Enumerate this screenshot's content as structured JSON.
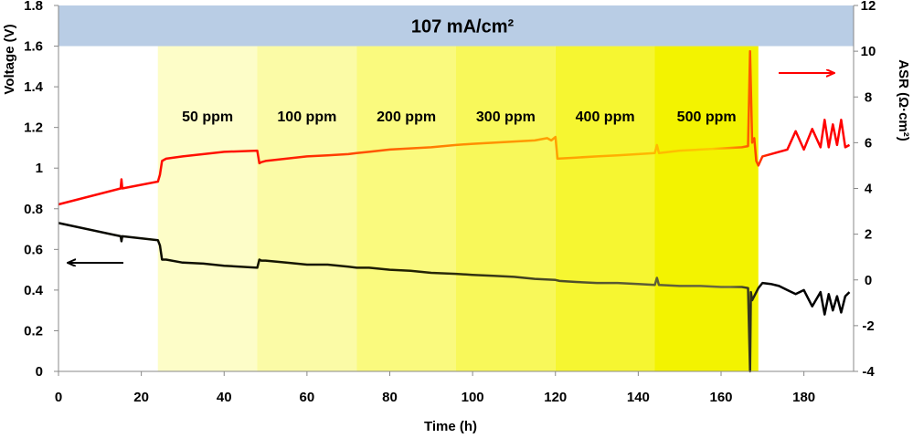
{
  "chart_data": {
    "type": "line",
    "title": "107    mA/cm²",
    "xlabel": "Time (h)",
    "ylabel_left": "Voltage (V)",
    "ylabel_right": "ASR (Ω·cm²)",
    "xlim": [
      0,
      192
    ],
    "ylim_left": [
      0,
      1.8
    ],
    "ylim_right": [
      -4,
      12
    ],
    "x_ticks": [
      0,
      20,
      40,
      60,
      80,
      100,
      120,
      140,
      160,
      180
    ],
    "y_left_ticks": [
      0,
      0.2,
      0.4,
      0.6,
      0.8,
      1,
      1.2,
      1.4,
      1.6,
      1.8
    ],
    "y_left_tick_labels": [
      "0",
      "0.2",
      "0.4",
      "0.6",
      "0.8",
      "1",
      "1.2",
      "1.4",
      "1.6",
      "1.8"
    ],
    "y_right_ticks": [
      -4,
      -2,
      0,
      2,
      4,
      6,
      8,
      10,
      12
    ],
    "zones": [
      {
        "label": "50 ppm",
        "x0": 24,
        "x1": 48,
        "color": "#fdfdc8"
      },
      {
        "label": "100 ppm",
        "x0": 48,
        "x1": 72,
        "color": "#fbfba6"
      },
      {
        "label": "200 ppm",
        "x0": 72,
        "x1": 96,
        "color": "#fafa7e"
      },
      {
        "label": "300 ppm",
        "x0": 96,
        "x1": 120,
        "color": "#f8f85a"
      },
      {
        "label": "400 ppm",
        "x0": 120,
        "x1": 144,
        "color": "#f6f631"
      },
      {
        "label": "500 ppm",
        "x0": 144,
        "x1": 169,
        "color": "#f3f300"
      }
    ],
    "colors": {
      "banner": "#b9cde5",
      "voltage": "#000000",
      "asr": "#ff0000",
      "asr_mid": "#ff9900"
    },
    "series": [
      {
        "name": "Voltage",
        "axis": "left",
        "x": [
          0,
          15,
          15.2,
          15.4,
          24,
          24.5,
          25,
          26,
          30,
          35,
          40,
          48,
          48.5,
          49,
          50,
          55,
          60,
          65,
          70,
          72,
          75,
          80,
          85,
          90,
          96,
          100,
          105,
          110,
          115,
          120,
          121,
          125,
          130,
          135,
          140,
          144,
          144.5,
          145,
          150,
          155,
          160,
          165,
          166.5,
          167,
          167.2,
          167.5,
          168,
          169,
          170,
          172,
          174,
          176,
          178,
          180,
          182,
          184,
          185,
          186,
          187,
          188,
          189,
          190,
          191
        ],
        "values": [
          0.73,
          0.665,
          0.64,
          0.665,
          0.645,
          0.62,
          0.55,
          0.55,
          0.535,
          0.53,
          0.52,
          0.51,
          0.55,
          0.545,
          0.545,
          0.535,
          0.525,
          0.525,
          0.515,
          0.51,
          0.51,
          0.5,
          0.495,
          0.485,
          0.48,
          0.475,
          0.47,
          0.465,
          0.455,
          0.45,
          0.445,
          0.44,
          0.435,
          0.435,
          0.43,
          0.425,
          0.46,
          0.425,
          0.42,
          0.42,
          0.415,
          0.415,
          0.41,
          0.0,
          0.39,
          0.35,
          0.37,
          0.41,
          0.435,
          0.43,
          0.42,
          0.4,
          0.38,
          0.4,
          0.32,
          0.39,
          0.28,
          0.38,
          0.3,
          0.37,
          0.29,
          0.37,
          0.39
        ]
      },
      {
        "name": "ASR",
        "axis": "right",
        "x": [
          0,
          15,
          15.2,
          15.4,
          24,
          24.5,
          25,
          26,
          30,
          35,
          40,
          48,
          48.5,
          49,
          50,
          55,
          60,
          65,
          70,
          72,
          75,
          80,
          85,
          90,
          96,
          100,
          105,
          110,
          115,
          118,
          119,
          120,
          120.5,
          125,
          130,
          135,
          140,
          144,
          144.5,
          145,
          150,
          155,
          160,
          165,
          166.5,
          167,
          167.5,
          168,
          168.5,
          169,
          170,
          172,
          174,
          176,
          178,
          180,
          182,
          184,
          185,
          186,
          187,
          188,
          189,
          190,
          191
        ],
        "values": [
          3.3,
          4.0,
          4.4,
          4.0,
          4.3,
          4.6,
          5.2,
          5.3,
          5.4,
          5.5,
          5.6,
          5.65,
          5.1,
          5.15,
          5.2,
          5.3,
          5.4,
          5.45,
          5.5,
          5.55,
          5.6,
          5.7,
          5.75,
          5.8,
          5.9,
          5.95,
          6.0,
          6.05,
          6.1,
          6.2,
          6.1,
          6.25,
          5.3,
          5.35,
          5.4,
          5.45,
          5.5,
          5.55,
          5.9,
          5.55,
          5.65,
          5.7,
          5.75,
          5.8,
          5.85,
          10.0,
          6.0,
          6.2,
          5.2,
          5.0,
          5.4,
          5.5,
          5.6,
          5.7,
          6.5,
          5.7,
          6.6,
          5.8,
          7.0,
          5.8,
          6.8,
          5.9,
          7.0,
          5.8,
          5.9
        ]
      }
    ]
  }
}
